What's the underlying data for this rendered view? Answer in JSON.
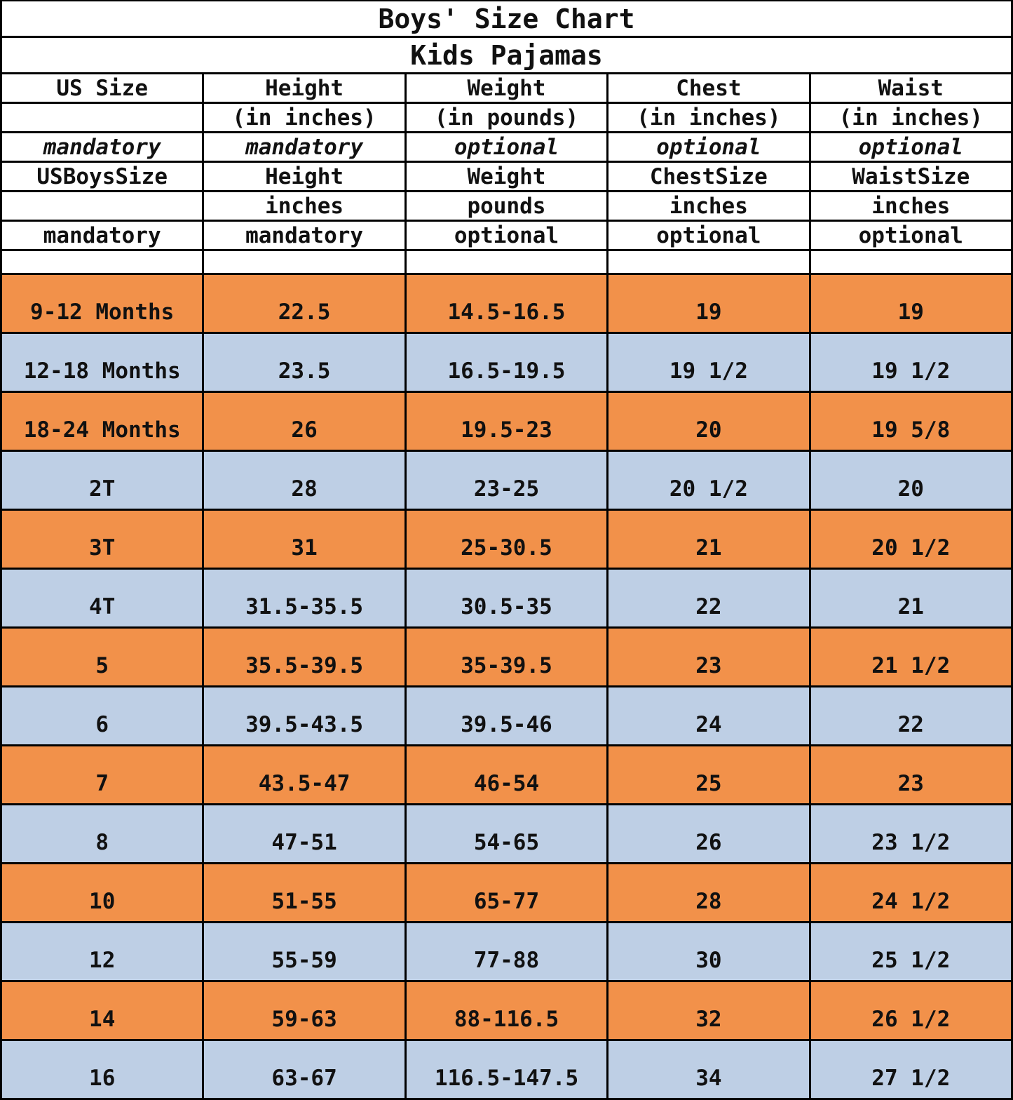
{
  "title": "Boys' Size Chart",
  "subtitle": "Kids Pajamas",
  "colors": {
    "row_orange": "#F2914A",
    "row_blue": "#BECFE5",
    "border": "#000000",
    "text": "#111111",
    "background": "#FFFFFF"
  },
  "header_rows": [
    {
      "style": "bold",
      "cells": [
        "US Size",
        "Height",
        "Weight",
        "Chest",
        "Waist"
      ]
    },
    {
      "style": "bold",
      "cells": [
        "",
        "(in inches)",
        "(in pounds)",
        "(in inches)",
        "(in inches)"
      ]
    },
    {
      "style": "italic",
      "cells": [
        "mandatory",
        "mandatory",
        "optional",
        "optional",
        "optional"
      ]
    },
    {
      "style": "bold",
      "cells": [
        "USBoysSize",
        "Height",
        "Weight",
        "ChestSize",
        "WaistSize"
      ]
    },
    {
      "style": "bold",
      "cells": [
        "",
        "inches",
        "pounds",
        "inches",
        "inches"
      ]
    },
    {
      "style": "bold",
      "cells": [
        "mandatory",
        "mandatory",
        "optional",
        "optional",
        "optional"
      ]
    }
  ],
  "chart_data": {
    "type": "table",
    "title": "Boys' Size Chart",
    "subtitle": "Kids Pajamas",
    "columns": [
      "US Size",
      "Height (in inches)",
      "Weight (in pounds)",
      "Chest (in inches)",
      "Waist (in inches)"
    ],
    "column_requirements": [
      "mandatory",
      "mandatory",
      "optional",
      "optional",
      "optional"
    ],
    "rows": [
      [
        "9-12 Months",
        "22.5",
        "14.5-16.5",
        "19",
        "19"
      ],
      [
        "12-18 Months",
        "23.5",
        "16.5-19.5",
        "19 1/2",
        "19 1/2"
      ],
      [
        "18-24 Months",
        "26",
        "19.5-23",
        "20",
        "19 5/8"
      ],
      [
        "2T",
        "28",
        "23-25",
        "20 1/2",
        "20"
      ],
      [
        "3T",
        "31",
        "25-30.5",
        "21",
        "20 1/2"
      ],
      [
        "4T",
        "31.5-35.5",
        "30.5-35",
        "22",
        "21"
      ],
      [
        "5",
        "35.5-39.5",
        "35-39.5",
        "23",
        "21 1/2"
      ],
      [
        "6",
        "39.5-43.5",
        "39.5-46",
        "24",
        "22"
      ],
      [
        "7",
        "43.5-47",
        "46-54",
        "25",
        "23"
      ],
      [
        "8",
        "47-51",
        "54-65",
        "26",
        "23 1/2"
      ],
      [
        "10",
        "51-55",
        "65-77",
        "28",
        "24 1/2"
      ],
      [
        "12",
        "55-59",
        "77-88",
        "30",
        "25 1/2"
      ],
      [
        "14",
        "59-63",
        "88-116.5",
        "32",
        "26 1/2"
      ],
      [
        "16",
        "63-67",
        "116.5-147.5",
        "34",
        "27 1/2"
      ]
    ],
    "layout_hints": {
      "row_fill_alternation": [
        "#F2914A",
        "#BECFE5"
      ],
      "first_data_row_fill": "#F2914A",
      "grid": "on",
      "columns_equal_width": true
    }
  }
}
